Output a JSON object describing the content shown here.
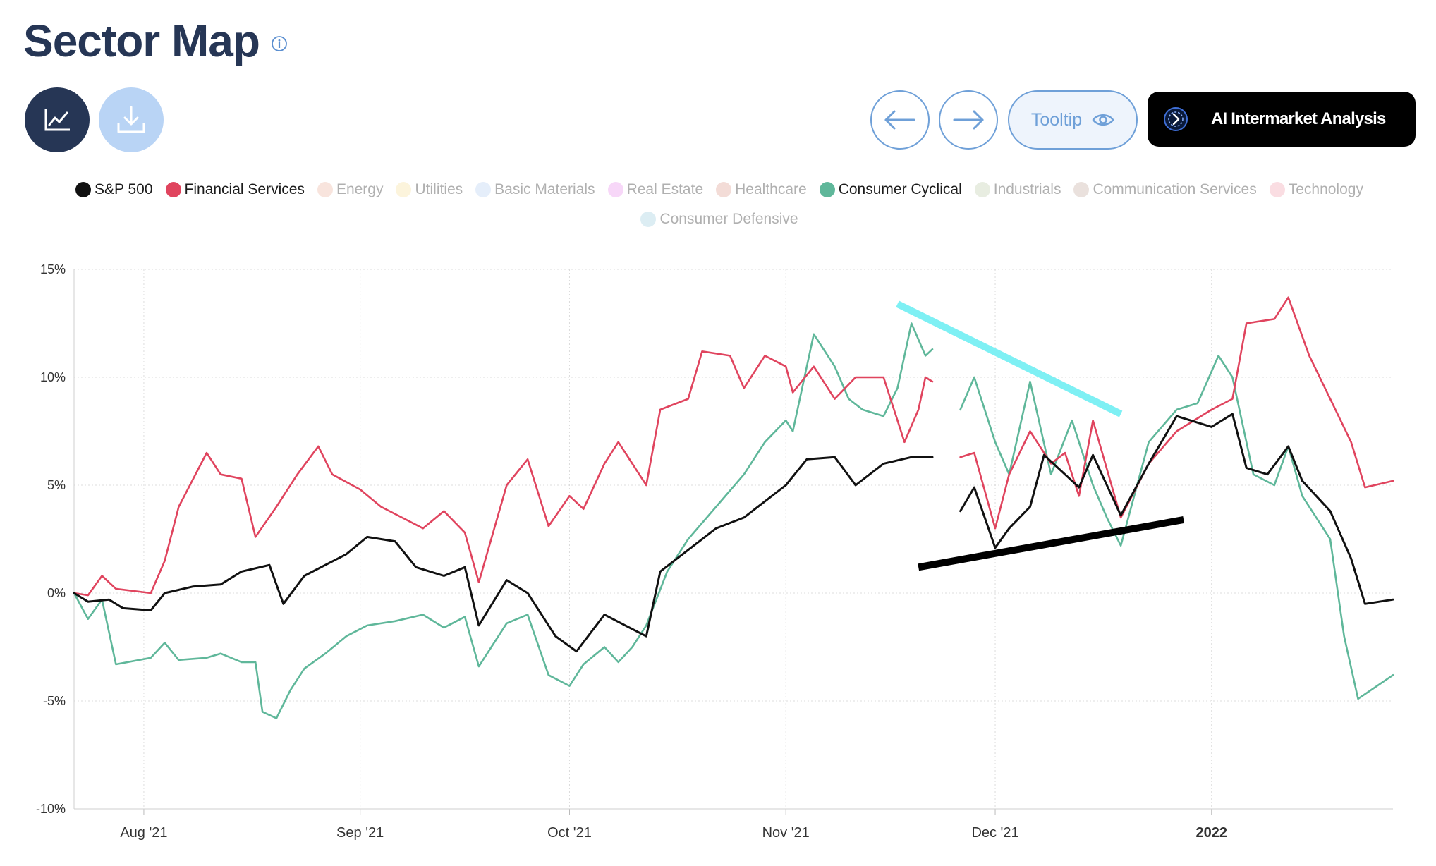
{
  "header": {
    "title": "Sector Map"
  },
  "toolbar": {
    "tooltip_label": "Tooltip",
    "ai_label": "AI Intermarket Analysis",
    "chart_icon": "line-chart-icon",
    "download_icon": "download-icon",
    "prev_icon": "arrow-left-icon",
    "next_icon": "arrow-right-icon"
  },
  "legend": {
    "items": [
      {
        "label": "S&P 500",
        "color": "#111111",
        "active": true
      },
      {
        "label": "Financial Services",
        "color": "#e0445e",
        "active": true
      },
      {
        "label": "Energy",
        "color": "#e8a48f",
        "active": false
      },
      {
        "label": "Utilities",
        "color": "#f5d98a",
        "active": false
      },
      {
        "label": "Basic Materials",
        "color": "#a9c8f0",
        "active": false
      },
      {
        "label": "Real Estate",
        "color": "#e37be8",
        "active": false
      },
      {
        "label": "Healthcare",
        "color": "#d88a7a",
        "active": false
      },
      {
        "label": "Consumer Cyclical",
        "color": "#5fb79a",
        "active": true
      },
      {
        "label": "Industrials",
        "color": "#b4c39a",
        "active": false
      },
      {
        "label": "Communication Services",
        "color": "#b89a8e",
        "active": false
      },
      {
        "label": "Technology",
        "color": "#f08e9e",
        "active": false
      },
      {
        "label": "Consumer Defensive",
        "color": "#8cc4d8",
        "active": false
      }
    ]
  },
  "chart_data": {
    "type": "line",
    "y_unit": "%",
    "ylim": [
      -10,
      15
    ],
    "y_ticks": [
      15,
      10,
      5,
      0,
      -5,
      -10
    ],
    "y_tick_labels": [
      "15%",
      "10%",
      "5%",
      "0%",
      "-5%",
      "-10%"
    ],
    "x_ticks": [
      "Aug '21",
      "Sep '21",
      "Oct '21",
      "Nov '21",
      "Dec '21",
      "2022"
    ],
    "x_ticks_bold": [
      false,
      false,
      false,
      false,
      false,
      true
    ],
    "grid": true,
    "series": [
      {
        "name": "S&P 500",
        "color": "#111111",
        "points": [
          [
            "2021-07-22",
            0.0
          ],
          [
            "2021-07-24",
            -0.4
          ],
          [
            "2021-07-27",
            -0.3
          ],
          [
            "2021-07-29",
            -0.7
          ],
          [
            "2021-08-02",
            -0.8
          ],
          [
            "2021-08-04",
            0.0
          ],
          [
            "2021-08-08",
            0.3
          ],
          [
            "2021-08-12",
            0.4
          ],
          [
            "2021-08-15",
            1.0
          ],
          [
            "2021-08-19",
            1.3
          ],
          [
            "2021-08-21",
            -0.5
          ],
          [
            "2021-08-24",
            0.8
          ],
          [
            "2021-08-27",
            1.3
          ],
          [
            "2021-08-30",
            1.8
          ],
          [
            "2021-09-02",
            2.6
          ],
          [
            "2021-09-06",
            2.4
          ],
          [
            "2021-09-09",
            1.2
          ],
          [
            "2021-09-13",
            0.8
          ],
          [
            "2021-09-16",
            1.2
          ],
          [
            "2021-09-18",
            -1.5
          ],
          [
            "2021-09-22",
            0.6
          ],
          [
            "2021-09-25",
            0.0
          ],
          [
            "2021-09-29",
            -2.0
          ],
          [
            "2021-10-02",
            -2.7
          ],
          [
            "2021-10-06",
            -1.0
          ],
          [
            "2021-10-09",
            -1.5
          ],
          [
            "2021-10-12",
            -2.0
          ],
          [
            "2021-10-14",
            1.0
          ],
          [
            "2021-10-18",
            2.0
          ],
          [
            "2021-10-22",
            3.0
          ],
          [
            "2021-10-26",
            3.5
          ],
          [
            "2021-10-28",
            4.0
          ],
          [
            "2021-11-01",
            5.0
          ],
          [
            "2021-11-04",
            6.2
          ],
          [
            "2021-11-08",
            6.3
          ],
          [
            "2021-11-11",
            5.0
          ],
          [
            "2021-11-15",
            6.0
          ],
          [
            "2021-11-19",
            6.3
          ],
          [
            "2021-11-22",
            6.3
          ],
          [
            "2021-11-23",
            null
          ],
          [
            "2021-11-26",
            3.8
          ],
          [
            "2021-11-28",
            4.9
          ],
          [
            "2021-12-01",
            2.1
          ],
          [
            "2021-12-03",
            3.0
          ],
          [
            "2021-12-06",
            4.0
          ],
          [
            "2021-12-08",
            6.4
          ],
          [
            "2021-12-11",
            5.5
          ],
          [
            "2021-12-13",
            4.9
          ],
          [
            "2021-12-15",
            6.4
          ],
          [
            "2021-12-19",
            3.6
          ],
          [
            "2021-12-23",
            6.0
          ],
          [
            "2021-12-27",
            8.2
          ],
          [
            "2021-12-29",
            8.0
          ],
          [
            "2022-01-01",
            7.7
          ],
          [
            "2022-01-04",
            8.3
          ],
          [
            "2022-01-06",
            5.8
          ],
          [
            "2022-01-09",
            5.5
          ],
          [
            "2022-01-12",
            6.8
          ],
          [
            "2022-01-14",
            5.2
          ],
          [
            "2022-01-18",
            3.8
          ],
          [
            "2022-01-21",
            1.6
          ],
          [
            "2022-01-23",
            -0.5
          ],
          [
            "2022-01-27",
            -0.3
          ]
        ]
      },
      {
        "name": "Financial Services",
        "color": "#e0445e",
        "points": [
          [
            "2021-07-22",
            0.0
          ],
          [
            "2021-07-24",
            -0.1
          ],
          [
            "2021-07-26",
            0.8
          ],
          [
            "2021-07-28",
            0.2
          ],
          [
            "2021-08-02",
            0.0
          ],
          [
            "2021-08-04",
            1.5
          ],
          [
            "2021-08-06",
            4.0
          ],
          [
            "2021-08-10",
            6.5
          ],
          [
            "2021-08-12",
            5.5
          ],
          [
            "2021-08-15",
            5.3
          ],
          [
            "2021-08-17",
            2.6
          ],
          [
            "2021-08-20",
            4.0
          ],
          [
            "2021-08-23",
            5.5
          ],
          [
            "2021-08-26",
            6.8
          ],
          [
            "2021-08-28",
            5.5
          ],
          [
            "2021-09-01",
            4.8
          ],
          [
            "2021-09-04",
            4.0
          ],
          [
            "2021-09-07",
            3.5
          ],
          [
            "2021-09-10",
            3.0
          ],
          [
            "2021-09-13",
            3.8
          ],
          [
            "2021-09-16",
            2.8
          ],
          [
            "2021-09-18",
            0.5
          ],
          [
            "2021-09-22",
            5.0
          ],
          [
            "2021-09-25",
            6.2
          ],
          [
            "2021-09-28",
            3.1
          ],
          [
            "2021-10-01",
            4.5
          ],
          [
            "2021-10-03",
            3.9
          ],
          [
            "2021-10-06",
            6.0
          ],
          [
            "2021-10-08",
            7.0
          ],
          [
            "2021-10-12",
            5.0
          ],
          [
            "2021-10-14",
            8.5
          ],
          [
            "2021-10-18",
            9.0
          ],
          [
            "2021-10-20",
            11.2
          ],
          [
            "2021-10-24",
            11.0
          ],
          [
            "2021-10-26",
            9.5
          ],
          [
            "2021-10-29",
            11.0
          ],
          [
            "2021-11-01",
            10.5
          ],
          [
            "2021-11-02",
            9.3
          ],
          [
            "2021-11-05",
            10.5
          ],
          [
            "2021-11-08",
            9.0
          ],
          [
            "2021-11-11",
            10.0
          ],
          [
            "2021-11-15",
            10.0
          ],
          [
            "2021-11-18",
            7.0
          ],
          [
            "2021-11-20",
            8.5
          ],
          [
            "2021-11-21",
            10.0
          ],
          [
            "2021-11-22",
            9.8
          ],
          [
            "2021-11-23",
            null
          ],
          [
            "2021-11-26",
            6.3
          ],
          [
            "2021-11-28",
            6.5
          ],
          [
            "2021-12-01",
            3.0
          ],
          [
            "2021-12-03",
            5.5
          ],
          [
            "2021-12-06",
            7.5
          ],
          [
            "2021-12-09",
            6.0
          ],
          [
            "2021-12-11",
            6.5
          ],
          [
            "2021-12-13",
            4.5
          ],
          [
            "2021-12-15",
            8.0
          ],
          [
            "2021-12-19",
            3.5
          ],
          [
            "2021-12-23",
            6.0
          ],
          [
            "2021-12-27",
            7.5
          ],
          [
            "2022-01-01",
            8.5
          ],
          [
            "2022-01-04",
            9.0
          ],
          [
            "2022-01-06",
            12.5
          ],
          [
            "2022-01-10",
            12.7
          ],
          [
            "2022-01-12",
            13.7
          ],
          [
            "2022-01-15",
            11.0
          ],
          [
            "2022-01-18",
            9.0
          ],
          [
            "2022-01-21",
            7.0
          ],
          [
            "2022-01-23",
            4.9
          ],
          [
            "2022-01-27",
            5.2
          ]
        ]
      },
      {
        "name": "Consumer Cyclical",
        "color": "#5fb79a",
        "points": [
          [
            "2021-07-22",
            0.0
          ],
          [
            "2021-07-24",
            -1.2
          ],
          [
            "2021-07-26",
            -0.3
          ],
          [
            "2021-07-28",
            -3.3
          ],
          [
            "2021-08-02",
            -3.0
          ],
          [
            "2021-08-04",
            -2.3
          ],
          [
            "2021-08-06",
            -3.1
          ],
          [
            "2021-08-10",
            -3.0
          ],
          [
            "2021-08-12",
            -2.8
          ],
          [
            "2021-08-15",
            -3.2
          ],
          [
            "2021-08-17",
            -3.2
          ],
          [
            "2021-08-18",
            -5.5
          ],
          [
            "2021-08-20",
            -5.8
          ],
          [
            "2021-08-22",
            -4.5
          ],
          [
            "2021-08-24",
            -3.5
          ],
          [
            "2021-08-27",
            -2.8
          ],
          [
            "2021-08-30",
            -2.0
          ],
          [
            "2021-09-02",
            -1.5
          ],
          [
            "2021-09-06",
            -1.3
          ],
          [
            "2021-09-10",
            -1.0
          ],
          [
            "2021-09-13",
            -1.6
          ],
          [
            "2021-09-16",
            -1.1
          ],
          [
            "2021-09-18",
            -3.4
          ],
          [
            "2021-09-22",
            -1.4
          ],
          [
            "2021-09-25",
            -1.0
          ],
          [
            "2021-09-28",
            -3.8
          ],
          [
            "2021-10-01",
            -4.3
          ],
          [
            "2021-10-03",
            -3.3
          ],
          [
            "2021-10-06",
            -2.5
          ],
          [
            "2021-10-08",
            -3.2
          ],
          [
            "2021-10-10",
            -2.5
          ],
          [
            "2021-10-12",
            -1.5
          ],
          [
            "2021-10-15",
            1.0
          ],
          [
            "2021-10-18",
            2.5
          ],
          [
            "2021-10-22",
            4.0
          ],
          [
            "2021-10-26",
            5.5
          ],
          [
            "2021-10-29",
            7.0
          ],
          [
            "2021-11-01",
            8.0
          ],
          [
            "2021-11-02",
            7.5
          ],
          [
            "2021-11-05",
            12.0
          ],
          [
            "2021-11-08",
            10.5
          ],
          [
            "2021-11-10",
            9.0
          ],
          [
            "2021-11-12",
            8.5
          ],
          [
            "2021-11-15",
            8.2
          ],
          [
            "2021-11-17",
            9.5
          ],
          [
            "2021-11-19",
            12.5
          ],
          [
            "2021-11-21",
            11.0
          ],
          [
            "2021-11-22",
            11.3
          ],
          [
            "2021-11-23",
            null
          ],
          [
            "2021-11-26",
            8.5
          ],
          [
            "2021-11-28",
            10.0
          ],
          [
            "2021-12-01",
            7.0
          ],
          [
            "2021-12-03",
            5.5
          ],
          [
            "2021-12-06",
            9.8
          ],
          [
            "2021-12-09",
            5.5
          ],
          [
            "2021-12-12",
            8.0
          ],
          [
            "2021-12-15",
            5.0
          ],
          [
            "2021-12-17",
            3.5
          ],
          [
            "2021-12-19",
            2.2
          ],
          [
            "2021-12-23",
            7.0
          ],
          [
            "2021-12-27",
            8.5
          ],
          [
            "2021-12-30",
            8.8
          ],
          [
            "2022-01-02",
            11.0
          ],
          [
            "2022-01-04",
            10.0
          ],
          [
            "2022-01-07",
            5.5
          ],
          [
            "2022-01-10",
            5.0
          ],
          [
            "2022-01-12",
            6.8
          ],
          [
            "2022-01-14",
            4.5
          ],
          [
            "2022-01-18",
            2.5
          ],
          [
            "2022-01-20",
            -2.0
          ],
          [
            "2022-01-22",
            -4.9
          ],
          [
            "2022-01-27",
            -3.8
          ]
        ]
      }
    ],
    "annotations": [
      {
        "type": "trendline",
        "color": "#7ef0f4",
        "from": [
          "2021-11-17",
          13.4
        ],
        "to": [
          "2021-12-19",
          8.3
        ]
      },
      {
        "type": "trendline",
        "color": "#000000",
        "from": [
          "2021-11-20",
          1.2
        ],
        "to": [
          "2021-12-28",
          3.4
        ]
      }
    ]
  }
}
